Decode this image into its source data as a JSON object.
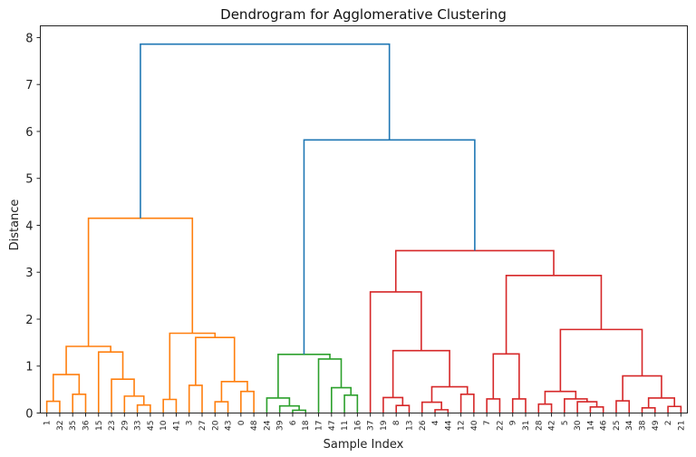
{
  "chart_data": {
    "type": "dendrogram",
    "title": "Dendrogram for Agglomerative Clustering",
    "xlabel": "Sample Index",
    "ylabel": "Distance",
    "ylim": [
      0,
      8.25
    ],
    "yticks": [
      0,
      1,
      2,
      3,
      4,
      5,
      6,
      7,
      8
    ],
    "grid": false,
    "colors": {
      "above_threshold": "#1f77b4",
      "cluster_1": "#ff7f0e",
      "cluster_2": "#2ca02c",
      "cluster_3": "#d62728"
    },
    "leaf_order": [
      "1",
      "32",
      "35",
      "36",
      "15",
      "23",
      "29",
      "33",
      "45",
      "10",
      "41",
      "3",
      "27",
      "20",
      "43",
      "0",
      "48",
      "24",
      "39",
      "6",
      "18",
      "17",
      "47",
      "11",
      "16",
      "37",
      "19",
      "8",
      "13",
      "26",
      "4",
      "44",
      "12",
      "40",
      "7",
      "22",
      "9",
      "31",
      "28",
      "42",
      "5",
      "30",
      "14",
      "46",
      "25",
      "34",
      "38",
      "49",
      "2",
      "21"
    ],
    "merges": [
      {
        "id": "o1",
        "left": "1",
        "right": "32",
        "distance": 0.25,
        "color": "cluster_1"
      },
      {
        "id": "o2",
        "left": "35",
        "right": "36",
        "distance": 0.4,
        "color": "cluster_1"
      },
      {
        "id": "o3",
        "left": "o1",
        "right": "o2",
        "distance": 0.82,
        "color": "cluster_1"
      },
      {
        "id": "o4",
        "left": "33",
        "right": "45",
        "distance": 0.17,
        "color": "cluster_1"
      },
      {
        "id": "o5",
        "left": "29",
        "right": "o4",
        "distance": 0.36,
        "color": "cluster_1"
      },
      {
        "id": "o6",
        "left": "23",
        "right": "o5",
        "distance": 0.72,
        "color": "cluster_1"
      },
      {
        "id": "o7",
        "left": "15",
        "right": "o6",
        "distance": 1.3,
        "color": "cluster_1"
      },
      {
        "id": "o8",
        "left": "o3",
        "right": "o7",
        "distance": 1.42,
        "color": "cluster_1"
      },
      {
        "id": "o9",
        "left": "10",
        "right": "41",
        "distance": 0.29,
        "color": "cluster_1"
      },
      {
        "id": "o10",
        "left": "3",
        "right": "27",
        "distance": 0.59,
        "color": "cluster_1"
      },
      {
        "id": "o11",
        "left": "20",
        "right": "43",
        "distance": 0.24,
        "color": "cluster_1"
      },
      {
        "id": "o12",
        "left": "0",
        "right": "48",
        "distance": 0.46,
        "color": "cluster_1"
      },
      {
        "id": "o13",
        "left": "o11",
        "right": "o12",
        "distance": 0.67,
        "color": "cluster_1"
      },
      {
        "id": "o14",
        "left": "o10",
        "right": "o13",
        "distance": 1.61,
        "color": "cluster_1"
      },
      {
        "id": "o15",
        "left": "o9",
        "right": "o14",
        "distance": 1.7,
        "color": "cluster_1"
      },
      {
        "id": "o16",
        "left": "o8",
        "right": "o15",
        "distance": 4.15,
        "color": "cluster_1"
      },
      {
        "id": "g1",
        "left": "6",
        "right": "18",
        "distance": 0.06,
        "color": "cluster_2"
      },
      {
        "id": "g2",
        "left": "39",
        "right": "g1",
        "distance": 0.15,
        "color": "cluster_2"
      },
      {
        "id": "g3",
        "left": "24",
        "right": "g2",
        "distance": 0.32,
        "color": "cluster_2"
      },
      {
        "id": "g4",
        "left": "11",
        "right": "16",
        "distance": 0.38,
        "color": "cluster_2"
      },
      {
        "id": "g5",
        "left": "47",
        "right": "g4",
        "distance": 0.54,
        "color": "cluster_2"
      },
      {
        "id": "g6",
        "left": "17",
        "right": "g5",
        "distance": 1.15,
        "color": "cluster_2"
      },
      {
        "id": "g7",
        "left": "g3",
        "right": "g6",
        "distance": 1.25,
        "color": "cluster_2"
      },
      {
        "id": "r1",
        "left": "8",
        "right": "13",
        "distance": 0.16,
        "color": "cluster_3"
      },
      {
        "id": "r2",
        "left": "19",
        "right": "r1",
        "distance": 0.33,
        "color": "cluster_3"
      },
      {
        "id": "r3",
        "left": "4",
        "right": "44",
        "distance": 0.07,
        "color": "cluster_3"
      },
      {
        "id": "r4",
        "left": "26",
        "right": "r3",
        "distance": 0.23,
        "color": "cluster_3"
      },
      {
        "id": "r5",
        "left": "12",
        "right": "40",
        "distance": 0.4,
        "color": "cluster_3"
      },
      {
        "id": "r6",
        "left": "r4",
        "right": "r5",
        "distance": 0.56,
        "color": "cluster_3"
      },
      {
        "id": "r7",
        "left": "r2",
        "right": "r6",
        "distance": 1.33,
        "color": "cluster_3"
      },
      {
        "id": "r8",
        "left": "37",
        "right": "r7",
        "distance": 2.58,
        "color": "cluster_3"
      },
      {
        "id": "r9",
        "left": "7",
        "right": "22",
        "distance": 0.3,
        "color": "cluster_3"
      },
      {
        "id": "r10",
        "left": "9",
        "right": "31",
        "distance": 0.3,
        "color": "cluster_3"
      },
      {
        "id": "r11",
        "left": "r9",
        "right": "r10",
        "distance": 1.26,
        "color": "cluster_3"
      },
      {
        "id": "r12",
        "left": "28",
        "right": "42",
        "distance": 0.19,
        "color": "cluster_3"
      },
      {
        "id": "r13",
        "left": "14",
        "right": "46",
        "distance": 0.13,
        "color": "cluster_3"
      },
      {
        "id": "r14",
        "left": "30",
        "right": "r13",
        "distance": 0.24,
        "color": "cluster_3"
      },
      {
        "id": "r15",
        "left": "5",
        "right": "r14",
        "distance": 0.3,
        "color": "cluster_3"
      },
      {
        "id": "r16",
        "left": "r12",
        "right": "r15",
        "distance": 0.46,
        "color": "cluster_3"
      },
      {
        "id": "r17",
        "left": "25",
        "right": "34",
        "distance": 0.26,
        "color": "cluster_3"
      },
      {
        "id": "r18",
        "left": "38",
        "right": "49",
        "distance": 0.11,
        "color": "cluster_3"
      },
      {
        "id": "r19",
        "left": "2",
        "right": "21",
        "distance": 0.14,
        "color": "cluster_3"
      },
      {
        "id": "r20",
        "left": "r18",
        "right": "r19",
        "distance": 0.32,
        "color": "cluster_3"
      },
      {
        "id": "r21",
        "left": "r17",
        "right": "r20",
        "distance": 0.79,
        "color": "cluster_3"
      },
      {
        "id": "r22",
        "left": "r16",
        "right": "r21",
        "distance": 1.78,
        "color": "cluster_3"
      },
      {
        "id": "r23",
        "left": "r11",
        "right": "r22",
        "distance": 2.93,
        "color": "cluster_3"
      },
      {
        "id": "r24",
        "left": "r8",
        "right": "r23",
        "distance": 3.46,
        "color": "cluster_3"
      },
      {
        "id": "b1",
        "left": "g7",
        "right": "r24",
        "distance": 5.82,
        "color": "above_threshold"
      },
      {
        "id": "b0",
        "left": "o16",
        "right": "b1",
        "distance": 7.86,
        "color": "above_threshold"
      }
    ]
  }
}
